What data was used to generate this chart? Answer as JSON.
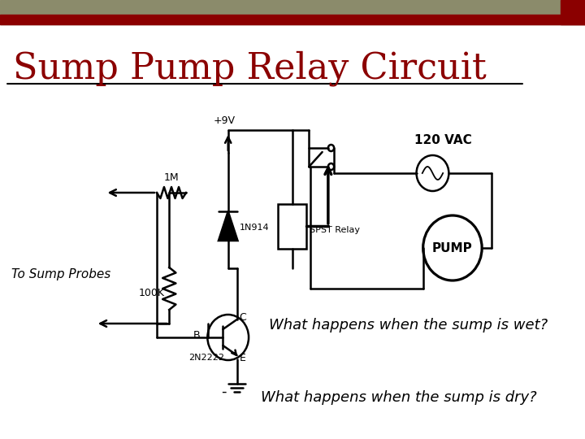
{
  "title": "Sump Pump Relay Circuit",
  "title_fontsize": 32,
  "title_color": "#8B0000",
  "title_font": "serif",
  "bg_color": "#ffffff",
  "header_bar1_color": "#8B8B6B",
  "header_bar2_color": "#8B0000",
  "line_color": "#000000",
  "text_120vac": "120 VAC",
  "text_pump": "PUMP",
  "text_1m": "1M",
  "text_100k": "100K",
  "text_9v": "+9V",
  "text_1n914": "1N914",
  "text_spst": "SPST Relay",
  "text_2n2222": "2N2222",
  "text_c": "C",
  "text_b": "B",
  "text_e": "E",
  "text_probes": "To Sump Probes",
  "text_wet": "What happens when the sump is wet?",
  "text_dry": "What happens when the sump is dry?",
  "label_fontsize": 9,
  "question_fontsize": 13
}
